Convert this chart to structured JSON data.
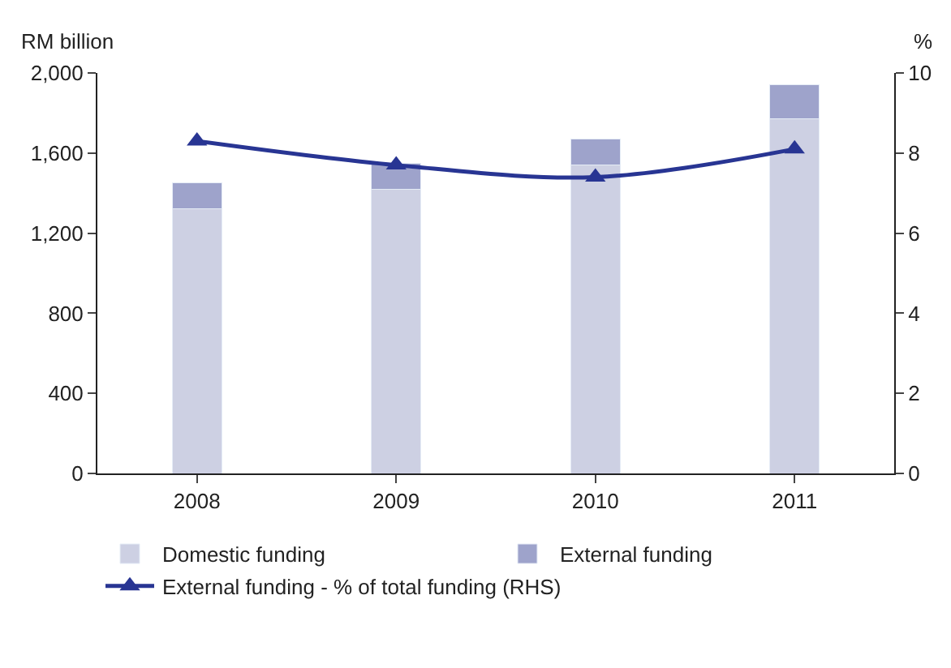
{
  "chart_data": {
    "type": "bar",
    "stacked": true,
    "categories": [
      "2008",
      "2009",
      "2010",
      "2011"
    ],
    "ylabel": "RM billion",
    "y2label": "%",
    "series": [
      {
        "name": "Domestic funding",
        "color": "#cdd0e3",
        "values": [
          1320,
          1420,
          1540,
          1770
        ]
      },
      {
        "name": "External funding",
        "color": "#9ea3cb",
        "values": [
          130,
          130,
          130,
          170
        ]
      },
      {
        "name": "External funding - % of total funding (RHS)",
        "type": "line",
        "axis": "y2",
        "color": "#283593",
        "marker": "triangle",
        "values": [
          8.3,
          7.7,
          7.4,
          8.1
        ]
      }
    ],
    "ylim": [
      0,
      2000
    ],
    "yticks": [
      {
        "value": 0,
        "label": "0"
      },
      {
        "value": 400,
        "label": "400"
      },
      {
        "value": 800,
        "label": "800"
      },
      {
        "value": 1200,
        "label": "1,200"
      },
      {
        "value": 1600,
        "label": "1,600"
      },
      {
        "value": 2000,
        "label": "2,000"
      }
    ],
    "y2lim": [
      0,
      10
    ],
    "y2ticks": [
      0,
      2,
      4,
      6,
      8,
      10
    ],
    "legend": "bottom"
  }
}
